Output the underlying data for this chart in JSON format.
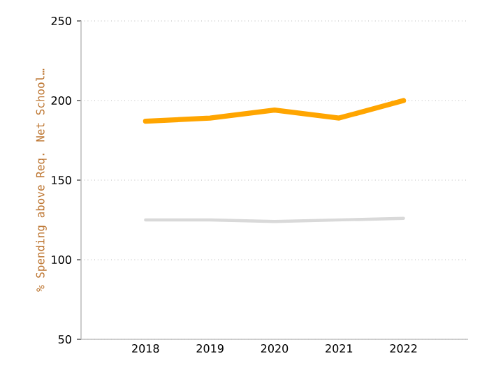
{
  "chart_data": {
    "type": "line",
    "ylabel": "% Spending above Req. Net School…",
    "categories": [
      "2018",
      "2019",
      "2020",
      "2021",
      "2022"
    ],
    "series": [
      {
        "color": "#ffa500",
        "values": [
          187,
          189,
          194,
          189,
          200
        ]
      },
      {
        "color": "#d9d9d9",
        "values": [
          125,
          125,
          124,
          125,
          126
        ]
      }
    ],
    "ylim": [
      50,
      250
    ],
    "yticks": [
      50,
      100,
      150,
      200,
      250
    ],
    "grid": "y",
    "marker": "none",
    "line_style": "solid"
  }
}
